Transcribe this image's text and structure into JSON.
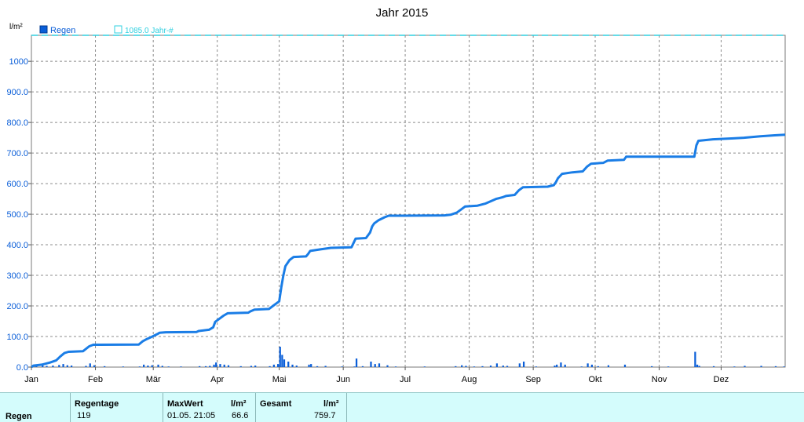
{
  "chart_data": {
    "type": "line",
    "title": "Jahr 2015",
    "ylabel": "l/m²",
    "ylim": [
      0,
      1085
    ],
    "yticks": [
      0,
      100,
      200,
      300,
      400,
      500,
      600,
      700,
      800,
      900,
      1000
    ],
    "ytick_labels": [
      "0.0",
      "100.0",
      "200.0",
      "300.0",
      "400.0",
      "500.0",
      "600.0",
      "700.0",
      "800.0",
      "900.0",
      "1000"
    ],
    "xlim": [
      0,
      365
    ],
    "xtick_days": [
      0,
      31,
      59,
      90,
      120,
      151,
      181,
      212,
      243,
      273,
      304,
      334
    ],
    "xtick_labels": [
      "Jan",
      "Feb",
      "Mär",
      "Apr",
      "Mai",
      "Jun",
      "Jul",
      "Aug",
      "Sep",
      "Okt",
      "Nov",
      "Dez"
    ],
    "grid": true,
    "legend": [
      {
        "name": "Regen",
        "color": "#0078e0"
      },
      {
        "name": "1085.0 Jahr-#",
        "color": "#30d0e0"
      }
    ],
    "reference_line": {
      "value": 1085,
      "label": "1085.0 Jahr-#",
      "color": "#30d0e0"
    },
    "cumulative": {
      "name": "Regen",
      "color": "#1a7de6",
      "points": [
        [
          0,
          0
        ],
        [
          1,
          5
        ],
        [
          5,
          8
        ],
        [
          9,
          15
        ],
        [
          12,
          22
        ],
        [
          14,
          35
        ],
        [
          16,
          46
        ],
        [
          18,
          50
        ],
        [
          25,
          52
        ],
        [
          28,
          68
        ],
        [
          30,
          73
        ],
        [
          52,
          74
        ],
        [
          54,
          85
        ],
        [
          56,
          92
        ],
        [
          58,
          98
        ],
        [
          61,
          108
        ],
        [
          62,
          112
        ],
        [
          65,
          114
        ],
        [
          80,
          115
        ],
        [
          81,
          118
        ],
        [
          86,
          122
        ],
        [
          88,
          130
        ],
        [
          89,
          148
        ],
        [
          91,
          158
        ],
        [
          93,
          168
        ],
        [
          95,
          176
        ],
        [
          105,
          178
        ],
        [
          106,
          182
        ],
        [
          108,
          188
        ],
        [
          115,
          190
        ],
        [
          117,
          200
        ],
        [
          119,
          210
        ],
        [
          120,
          215
        ],
        [
          121,
          260
        ],
        [
          122,
          300
        ],
        [
          123,
          330
        ],
        [
          125,
          350
        ],
        [
          127,
          360
        ],
        [
          133,
          362
        ],
        [
          134,
          370
        ],
        [
          135,
          380
        ],
        [
          140,
          385
        ],
        [
          145,
          390
        ],
        [
          155,
          392
        ],
        [
          157,
          420
        ],
        [
          162,
          422
        ],
        [
          164,
          440
        ],
        [
          165,
          460
        ],
        [
          166,
          470
        ],
        [
          168,
          480
        ],
        [
          171,
          490
        ],
        [
          173,
          495
        ],
        [
          180,
          495
        ],
        [
          200,
          496
        ],
        [
          203,
          498
        ],
        [
          206,
          505
        ],
        [
          208,
          515
        ],
        [
          210,
          525
        ],
        [
          216,
          528
        ],
        [
          220,
          535
        ],
        [
          225,
          550
        ],
        [
          228,
          555
        ],
        [
          230,
          560
        ],
        [
          234,
          563
        ],
        [
          236,
          578
        ],
        [
          238,
          588
        ],
        [
          250,
          590
        ],
        [
          253,
          595
        ],
        [
          254,
          605
        ],
        [
          255,
          618
        ],
        [
          257,
          632
        ],
        [
          262,
          637
        ],
        [
          267,
          640
        ],
        [
          269,
          655
        ],
        [
          271,
          665
        ],
        [
          277,
          668
        ],
        [
          279,
          675
        ],
        [
          287,
          678
        ],
        [
          288,
          688
        ],
        [
          302,
          688
        ],
        [
          321,
          688
        ],
        [
          322,
          725
        ],
        [
          323,
          740
        ],
        [
          330,
          745
        ],
        [
          340,
          748
        ],
        [
          345,
          750
        ],
        [
          353,
          755
        ],
        [
          360,
          758
        ],
        [
          365,
          759.7
        ]
      ]
    },
    "daily": {
      "name": "Regen",
      "color": "#0a5ed8",
      "bars": [
        [
          2,
          3
        ],
        [
          5,
          6
        ],
        [
          7,
          4
        ],
        [
          10,
          5
        ],
        [
          13,
          7
        ],
        [
          15,
          10
        ],
        [
          17,
          6
        ],
        [
          19,
          5
        ],
        [
          26,
          4
        ],
        [
          28,
          12
        ],
        [
          30,
          6
        ],
        [
          35,
          3
        ],
        [
          44,
          2
        ],
        [
          52,
          2
        ],
        [
          54,
          8
        ],
        [
          56,
          5
        ],
        [
          58,
          6
        ],
        [
          61,
          8
        ],
        [
          63,
          4
        ],
        [
          66,
          2
        ],
        [
          72,
          2
        ],
        [
          81,
          3
        ],
        [
          84,
          3
        ],
        [
          86,
          4
        ],
        [
          88,
          8
        ],
        [
          89,
          15
        ],
        [
          91,
          10
        ],
        [
          93,
          8
        ],
        [
          95,
          6
        ],
        [
          101,
          3
        ],
        [
          106,
          4
        ],
        [
          108,
          5
        ],
        [
          115,
          3
        ],
        [
          117,
          8
        ],
        [
          119,
          10
        ],
        [
          120,
          66.6
        ],
        [
          121,
          40
        ],
        [
          122,
          25
        ],
        [
          124,
          18
        ],
        [
          126,
          8
        ],
        [
          128,
          5
        ],
        [
          134,
          8
        ],
        [
          135,
          10
        ],
        [
          138,
          3
        ],
        [
          142,
          4
        ],
        [
          150,
          2
        ],
        [
          156,
          2
        ],
        [
          157,
          28
        ],
        [
          160,
          3
        ],
        [
          164,
          18
        ],
        [
          166,
          10
        ],
        [
          168,
          12
        ],
        [
          172,
          6
        ],
        [
          176,
          2
        ],
        [
          190,
          2
        ],
        [
          205,
          3
        ],
        [
          208,
          6
        ],
        [
          210,
          4
        ],
        [
          214,
          2
        ],
        [
          218,
          3
        ],
        [
          222,
          5
        ],
        [
          225,
          12
        ],
        [
          228,
          5
        ],
        [
          230,
          4
        ],
        [
          236,
          12
        ],
        [
          238,
          18
        ],
        [
          244,
          2
        ],
        [
          253,
          5
        ],
        [
          254,
          8
        ],
        [
          256,
          15
        ],
        [
          258,
          8
        ],
        [
          266,
          2
        ],
        [
          269,
          12
        ],
        [
          271,
          8
        ],
        [
          274,
          3
        ],
        [
          279,
          6
        ],
        [
          287,
          8
        ],
        [
          300,
          3
        ],
        [
          308,
          2
        ],
        [
          321,
          50
        ],
        [
          322,
          8
        ],
        [
          323,
          4
        ],
        [
          330,
          3
        ],
        [
          340,
          2
        ],
        [
          345,
          4
        ],
        [
          353,
          4
        ],
        [
          360,
          3
        ],
        [
          364,
          2
        ]
      ]
    }
  },
  "stats": {
    "row_label": "Regen",
    "regentage_label": "Regentage",
    "regentage_value": "119",
    "maxwert_label": "MaxWert",
    "maxwert_unit": "l/m²",
    "maxwert_date": "01.05.  21:05",
    "maxwert_value": "66.6",
    "gesamt_label": "Gesamt",
    "gesamt_unit": "l/m²",
    "gesamt_value": "759.7"
  }
}
